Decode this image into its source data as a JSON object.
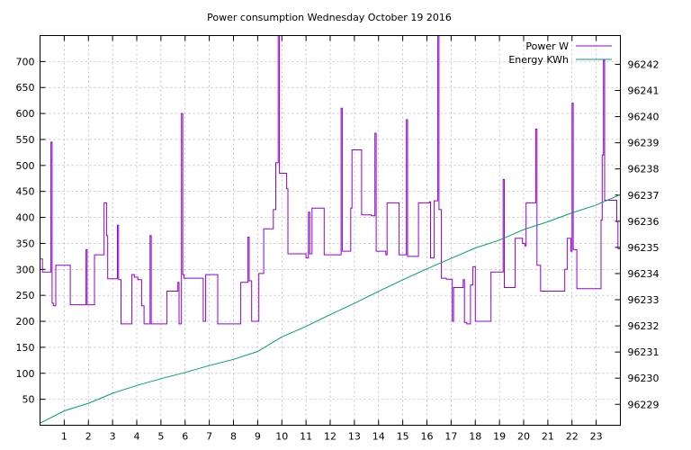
{
  "chart_data": {
    "type": "line",
    "title": "Power consumption Wednesday October 19 2016",
    "xlabel": "",
    "ylabel": "",
    "xlim": [
      0,
      24
    ],
    "ylim": [
      0,
      750
    ],
    "y2lim": [
      96228.2,
      96243.1
    ],
    "grid": true,
    "legend_position": "top-right",
    "x_ticks": [
      1,
      2,
      3,
      4,
      5,
      6,
      7,
      8,
      9,
      10,
      11,
      12,
      13,
      14,
      15,
      16,
      17,
      18,
      19,
      20,
      21,
      22,
      23
    ],
    "y_ticks": [
      50,
      100,
      150,
      200,
      250,
      300,
      350,
      400,
      450,
      500,
      550,
      600,
      650,
      700
    ],
    "y2_ticks": [
      96229,
      96230,
      96231,
      96232,
      96233,
      96234,
      96235,
      96236,
      96237,
      96238,
      96239,
      96240,
      96241,
      96242
    ],
    "series": [
      {
        "name": "Power W",
        "color": "#9400d3",
        "axis": "y1",
        "step": true,
        "points": [
          [
            0.0,
            320
          ],
          [
            0.1,
            295
          ],
          [
            0.4,
            295
          ],
          [
            0.45,
            545
          ],
          [
            0.5,
            235
          ],
          [
            0.55,
            230
          ],
          [
            0.65,
            308
          ],
          [
            1.25,
            232
          ],
          [
            1.85,
            232
          ],
          [
            1.9,
            338
          ],
          [
            1.95,
            232
          ],
          [
            2.2,
            232
          ],
          [
            2.25,
            328
          ],
          [
            2.6,
            328
          ],
          [
            2.65,
            428
          ],
          [
            2.75,
            365
          ],
          [
            2.8,
            282
          ],
          [
            3.15,
            282
          ],
          [
            3.2,
            385
          ],
          [
            3.25,
            280
          ],
          [
            3.35,
            195
          ],
          [
            3.75,
            195
          ],
          [
            3.8,
            290
          ],
          [
            3.9,
            285
          ],
          [
            4.05,
            280
          ],
          [
            4.2,
            230
          ],
          [
            4.3,
            195
          ],
          [
            4.55,
            365
          ],
          [
            4.6,
            195
          ],
          [
            5.2,
            195
          ],
          [
            5.25,
            258
          ],
          [
            5.7,
            275
          ],
          [
            5.75,
            195
          ],
          [
            5.85,
            600
          ],
          [
            5.9,
            290
          ],
          [
            5.95,
            283
          ],
          [
            6.7,
            283
          ],
          [
            6.75,
            200
          ],
          [
            6.85,
            290
          ],
          [
            7.3,
            290
          ],
          [
            7.35,
            195
          ],
          [
            8.25,
            195
          ],
          [
            8.3,
            275
          ],
          [
            8.6,
            362
          ],
          [
            8.65,
            278
          ],
          [
            8.75,
            200
          ],
          [
            9.0,
            200
          ],
          [
            9.05,
            292
          ],
          [
            9.25,
            378
          ],
          [
            9.65,
            415
          ],
          [
            9.75,
            505
          ],
          [
            9.85,
            750
          ],
          [
            9.9,
            485
          ],
          [
            10.15,
            485
          ],
          [
            10.2,
            455
          ],
          [
            10.25,
            330
          ],
          [
            10.95,
            330
          ],
          [
            11.0,
            322
          ],
          [
            11.1,
            410
          ],
          [
            11.15,
            330
          ],
          [
            11.25,
            418
          ],
          [
            11.7,
            418
          ],
          [
            11.75,
            328
          ],
          [
            12.4,
            328
          ],
          [
            12.45,
            610
          ],
          [
            12.5,
            335
          ],
          [
            12.85,
            418
          ],
          [
            12.9,
            530
          ],
          [
            13.3,
            405
          ],
          [
            13.7,
            403
          ],
          [
            13.85,
            562
          ],
          [
            13.9,
            335
          ],
          [
            14.3,
            328
          ],
          [
            14.35,
            428
          ],
          [
            14.8,
            428
          ],
          [
            14.85,
            328
          ],
          [
            15.05,
            328
          ],
          [
            15.1,
            328
          ],
          [
            15.15,
            588
          ],
          [
            15.2,
            325
          ],
          [
            15.6,
            325
          ],
          [
            15.65,
            428
          ],
          [
            16.1,
            430
          ],
          [
            16.15,
            322
          ],
          [
            16.3,
            432
          ],
          [
            16.45,
            750
          ],
          [
            16.5,
            415
          ],
          [
            16.6,
            283
          ],
          [
            16.8,
            281
          ],
          [
            17.05,
            200
          ],
          [
            17.1,
            265
          ],
          [
            17.5,
            280
          ],
          [
            17.55,
            198
          ],
          [
            17.65,
            195
          ],
          [
            17.8,
            270
          ],
          [
            17.9,
            305
          ],
          [
            18.0,
            200
          ],
          [
            18.6,
            200
          ],
          [
            18.65,
            295
          ],
          [
            19.05,
            295
          ],
          [
            19.15,
            473
          ],
          [
            19.2,
            265
          ],
          [
            19.6,
            265
          ],
          [
            19.65,
            360
          ],
          [
            19.9,
            360
          ],
          [
            19.95,
            350
          ],
          [
            20.05,
            345
          ],
          [
            20.1,
            428
          ],
          [
            20.45,
            428
          ],
          [
            20.5,
            570
          ],
          [
            20.55,
            308
          ],
          [
            20.7,
            258
          ],
          [
            21.65,
            258
          ],
          [
            21.7,
            300
          ],
          [
            21.8,
            360
          ],
          [
            21.95,
            335
          ],
          [
            22.0,
            620
          ],
          [
            22.05,
            338
          ],
          [
            22.2,
            263
          ],
          [
            23.1,
            263
          ],
          [
            23.2,
            395
          ],
          [
            23.25,
            520
          ],
          [
            23.3,
            703
          ],
          [
            23.35,
            433
          ],
          [
            23.8,
            433
          ],
          [
            23.85,
            392
          ],
          [
            23.9,
            340
          ],
          [
            24.0,
            265
          ]
        ]
      },
      {
        "name": "Energy KWh",
        "color": "#009e73",
        "axis": "y2",
        "step": false,
        "points": [
          [
            0.0,
            96228.28
          ],
          [
            1.0,
            96228.75
          ],
          [
            2.0,
            96229.04
          ],
          [
            3.0,
            96229.42
          ],
          [
            4.0,
            96229.72
          ],
          [
            5.0,
            96229.98
          ],
          [
            6.0,
            96230.22
          ],
          [
            7.0,
            96230.48
          ],
          [
            8.0,
            96230.72
          ],
          [
            9.0,
            96231.02
          ],
          [
            10.0,
            96231.58
          ],
          [
            11.0,
            96231.98
          ],
          [
            12.0,
            96232.43
          ],
          [
            13.0,
            96232.86
          ],
          [
            14.0,
            96233.32
          ],
          [
            15.0,
            96233.76
          ],
          [
            16.0,
            96234.18
          ],
          [
            17.0,
            96234.58
          ],
          [
            18.0,
            96234.98
          ],
          [
            19.0,
            96235.28
          ],
          [
            20.0,
            96235.68
          ],
          [
            21.0,
            96235.98
          ],
          [
            22.0,
            96236.32
          ],
          [
            23.0,
            96236.62
          ],
          [
            24.0,
            96237.02
          ]
        ]
      }
    ]
  }
}
